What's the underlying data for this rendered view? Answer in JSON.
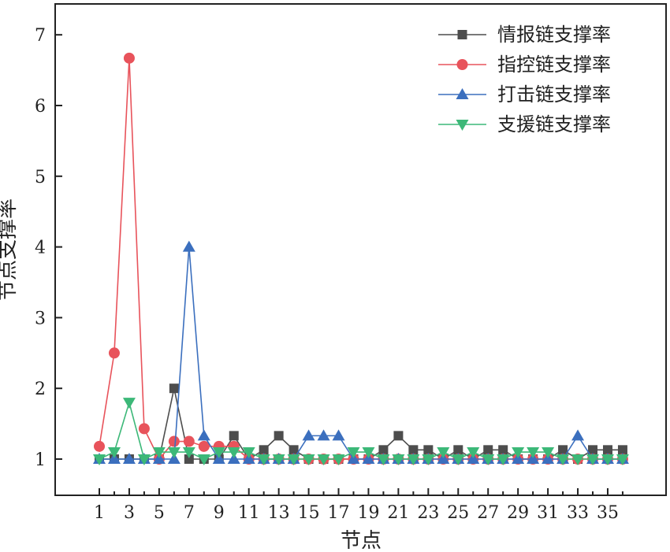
{
  "chart_data": {
    "type": "line",
    "xlabel": "节点",
    "ylabel": "节点支撑率",
    "xlim": [
      0,
      36
    ],
    "ylim": [
      0,
      7.4
    ],
    "x_ticks": [
      1,
      3,
      5,
      7,
      9,
      11,
      13,
      15,
      17,
      19,
      21,
      23,
      25,
      27,
      29,
      31,
      33,
      35
    ],
    "y_ticks": [
      1,
      2,
      3,
      4,
      5,
      6,
      7
    ],
    "grid": false,
    "legend_position": "top-right",
    "x": [
      1,
      2,
      3,
      4,
      5,
      6,
      7,
      8,
      9,
      10,
      11,
      12,
      13,
      14,
      15,
      16,
      17,
      18,
      19,
      20,
      21,
      22,
      23,
      24,
      25,
      26,
      27,
      28,
      29,
      30,
      31,
      32,
      33,
      34,
      35,
      36
    ],
    "series": [
      {
        "name": "情报链支撑率",
        "color": "#4d4d4d",
        "marker": "square",
        "values": [
          1,
          1,
          1,
          1,
          1,
          2,
          1,
          1,
          1,
          1.33,
          1,
          1.13,
          1.33,
          1.13,
          1,
          1,
          1,
          1,
          1,
          1.13,
          1.33,
          1.13,
          1.13,
          1,
          1.13,
          1,
          1.13,
          1.13,
          1,
          1,
          1,
          1.13,
          1,
          1.13,
          1.13,
          1.13
        ]
      },
      {
        "name": "指控链支撑率",
        "color": "#e8535b",
        "marker": "circle",
        "values": [
          1.18,
          2.5,
          6.67,
          1.43,
          1,
          1.25,
          1.25,
          1.18,
          1.18,
          1.18,
          1,
          1,
          1,
          1,
          1,
          1,
          1,
          1,
          1,
          1,
          1,
          1,
          1,
          1,
          1,
          1,
          1,
          1,
          1,
          1,
          1,
          1,
          1,
          1,
          1,
          1
        ]
      },
      {
        "name": "打击链支撑率",
        "color": "#3b6fbe",
        "marker": "triangle-up",
        "values": [
          1,
          1,
          1,
          1,
          1,
          1,
          4,
          1.33,
          1,
          1,
          1,
          1,
          1,
          1,
          1.33,
          1.33,
          1.33,
          1,
          1,
          1,
          1,
          1,
          1,
          1,
          1,
          1,
          1,
          1,
          1,
          1,
          1,
          1,
          1.33,
          1,
          1,
          1
        ]
      },
      {
        "name": "支援链支撑率",
        "color": "#3cb878",
        "marker": "triangle-down",
        "values": [
          1,
          1.1,
          1.8,
          1,
          1.1,
          1.1,
          1.1,
          1,
          1.1,
          1.1,
          1.1,
          1,
          1,
          1,
          1,
          1,
          1,
          1.1,
          1.1,
          1,
          1,
          1,
          1,
          1.1,
          1,
          1.1,
          1,
          1,
          1.1,
          1.1,
          1.1,
          1,
          1,
          1,
          1,
          1
        ]
      }
    ]
  }
}
